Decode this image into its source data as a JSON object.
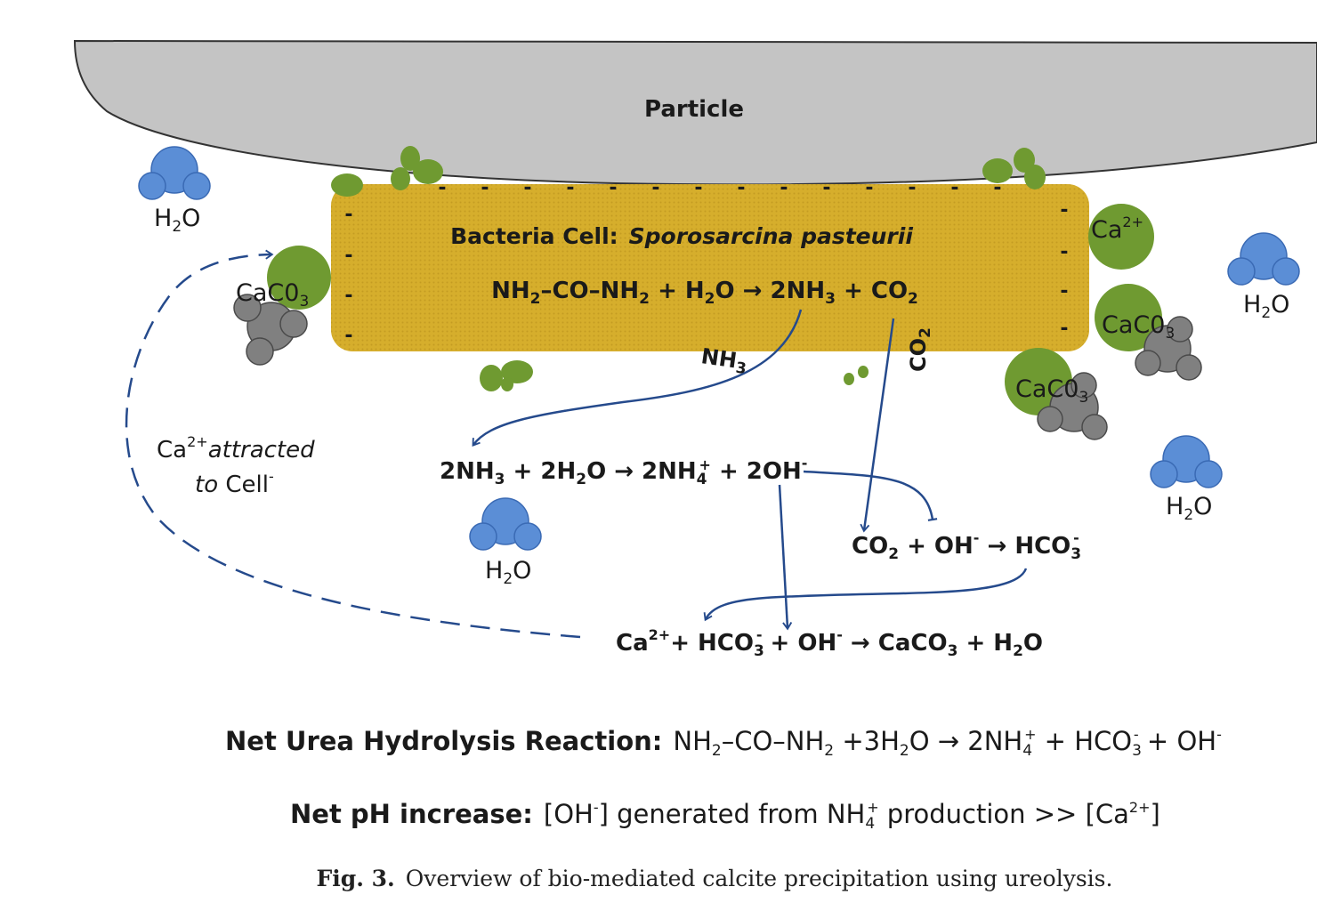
{
  "colors": {
    "particle": "#c4c4c4",
    "cell": "#d6ae2c",
    "green": "#6f9a31",
    "water": "#5b8ed6",
    "carbonate": "#808080",
    "arrow": "#254a8c"
  },
  "particle": {
    "label": "Particle"
  },
  "cell": {
    "title_prefix": "Bacteria Cell:",
    "species": "Sporosarcina pasteurii",
    "charge": "-"
  },
  "reaction_cell": {
    "a": "NH",
    "a_sub": "2",
    "b": "–CO–NH",
    "b_sub": "2",
    "c": " + H",
    "c_sub": "2",
    "d": "O → 2NH",
    "d_sub": "3",
    "e": " + CO",
    "e_sub": "2"
  },
  "nh3_label": {
    "base": "NH",
    "sub": "3"
  },
  "co2_label": {
    "base": "CO",
    "sub": "2"
  },
  "reaction_ammonia": {
    "a": "2NH",
    "a_sub": "3",
    "b": " + 2H",
    "b_sub": "2",
    "c": "O → 2NH",
    "c_sub": "4",
    "c_sup": "+",
    "d": " + 2OH",
    "d_sup": "-"
  },
  "reaction_bicarbonate": {
    "a": "CO",
    "a_sub": "2",
    "b": " + OH",
    "b_sup": "-",
    "c": " → HCO",
    "c_sub": "3",
    "c_sup": "-"
  },
  "reaction_precip": {
    "a": "Ca",
    "a_sup": "2+",
    "b": "+ HCO",
    "b_sub": "3",
    "b_sup": "-",
    "c": " + OH",
    "c_sup": "-",
    "d": " → CaCO",
    "d_sub": "3",
    "e": " + H",
    "e_sub": "2",
    "f": "O"
  },
  "attracted": {
    "ca": "Ca",
    "ca_sup": "2+",
    "word1": "attracted",
    "word2": "to",
    "cell": " Cell",
    "cell_sup": "-"
  },
  "water": {
    "base": "H",
    "sub": "2",
    "end": "O"
  },
  "caco3": {
    "base": "CaC0",
    "sub": "3"
  },
  "calcium_ion": {
    "base": "Ca",
    "sup": "2+"
  },
  "net_urea": {
    "label": "Net Urea Hydrolysis Reaction:",
    "a": "NH",
    "a_sub": "2",
    "b": "–CO–NH",
    "b_sub": "2",
    "c": " +3H",
    "c_sub": "2",
    "d": "O → 2NH",
    "d_sub": "4",
    "d_sup": "+",
    "e": " + HCO",
    "e_sub": "3",
    "e_sup": "-",
    "f": " + OH",
    "f_sup": "-"
  },
  "net_ph": {
    "label": "Net pH increase:",
    "a": "[OH",
    "a_sup": "-",
    "b": "] generated from NH",
    "b_sub": "4",
    "b_sup": "+",
    "c": " production >> [Ca",
    "c_sup": "2+",
    "d": "]"
  },
  "caption": {
    "number": "Fig. 3.",
    "text": "Overview of bio-mediated calcite precipitation using ureolysis."
  }
}
